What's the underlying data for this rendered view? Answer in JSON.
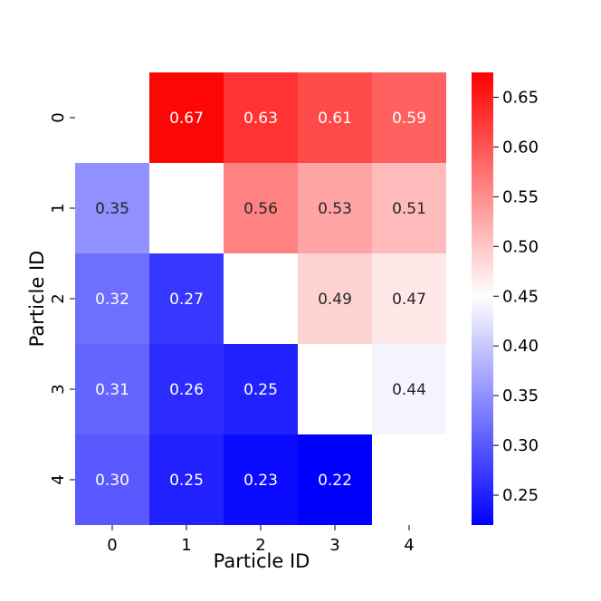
{
  "chart_data": {
    "type": "heatmap",
    "xlabel": "Particle ID",
    "ylabel": "Particle ID",
    "x_categories": [
      "0",
      "1",
      "2",
      "3",
      "4"
    ],
    "y_categories": [
      "0",
      "1",
      "2",
      "3",
      "4"
    ],
    "values": [
      [
        null,
        0.67,
        0.63,
        0.61,
        0.59
      ],
      [
        0.35,
        null,
        0.56,
        0.53,
        0.51
      ],
      [
        0.32,
        0.27,
        null,
        0.49,
        0.47
      ],
      [
        0.31,
        0.26,
        0.25,
        null,
        0.44
      ],
      [
        0.3,
        0.25,
        0.23,
        0.22,
        null
      ]
    ],
    "colorscale": "bwr",
    "colorbar": {
      "vmin": 0.22,
      "vmax": 0.675,
      "center": 0.45,
      "ticks": [
        "0.25",
        "0.30",
        "0.35",
        "0.40",
        "0.45",
        "0.50",
        "0.55",
        "0.60",
        "0.65"
      ]
    },
    "colors": {
      "low": "#0000ff",
      "mid": "#ffffff",
      "high": "#ff0000"
    }
  }
}
